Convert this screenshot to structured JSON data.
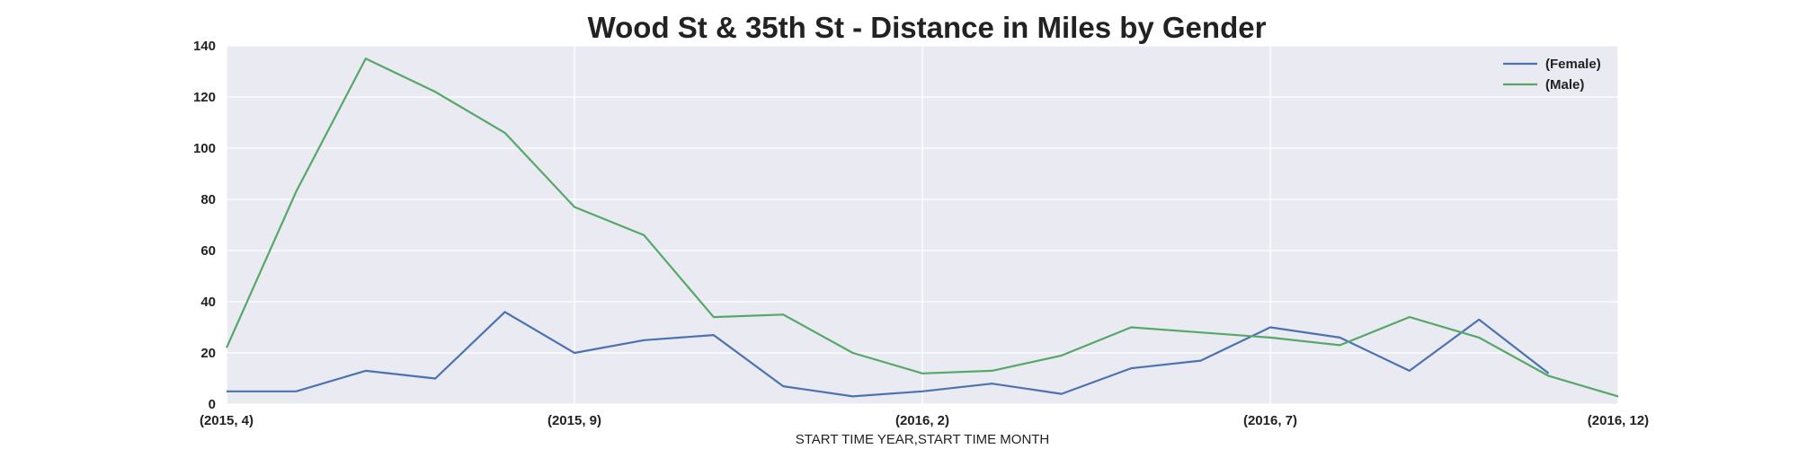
{
  "chart_data": {
    "type": "line",
    "title": "Wood St & 35th St - Distance in Miles by Gender",
    "xlabel": "START TIME YEAR,START TIME MONTH",
    "ylabel": "",
    "x": [
      "(2015, 4)",
      "(2015, 5)",
      "(2015, 6)",
      "(2015, 7)",
      "(2015, 8)",
      "(2015, 9)",
      "(2015, 10)",
      "(2015, 11)",
      "(2015, 12)",
      "(2016, 1)",
      "(2016, 2)",
      "(2016, 3)",
      "(2016, 4)",
      "(2016, 5)",
      "(2016, 6)",
      "(2016, 7)",
      "(2016, 8)",
      "(2016, 9)",
      "(2016, 10)",
      "(2016, 11)",
      "(2016, 12)"
    ],
    "xticks": [
      "(2015, 4)",
      "(2015, 9)",
      "(2016, 2)",
      "(2016, 7)",
      "(2016, 12)"
    ],
    "ylim": [
      0,
      140
    ],
    "yticks": [
      0,
      20,
      40,
      60,
      80,
      100,
      120,
      140
    ],
    "grid": true,
    "legend_position": "top-right",
    "series": [
      {
        "name": "(Female)",
        "color": "#4c72b0",
        "values": [
          5,
          5,
          13,
          10,
          36,
          20,
          25,
          27,
          7,
          3,
          5,
          8,
          4,
          14,
          17,
          30,
          26,
          13,
          33,
          12,
          null
        ]
      },
      {
        "name": "(Male)",
        "color": "#55a868",
        "values": [
          22,
          83,
          135,
          122,
          106,
          77,
          66,
          34,
          35,
          20,
          12,
          13,
          19,
          30,
          28,
          26,
          23,
          34,
          26,
          11,
          3
        ]
      }
    ],
    "plot_background": "#eaeaf2",
    "grid_color": "#ffffff"
  }
}
